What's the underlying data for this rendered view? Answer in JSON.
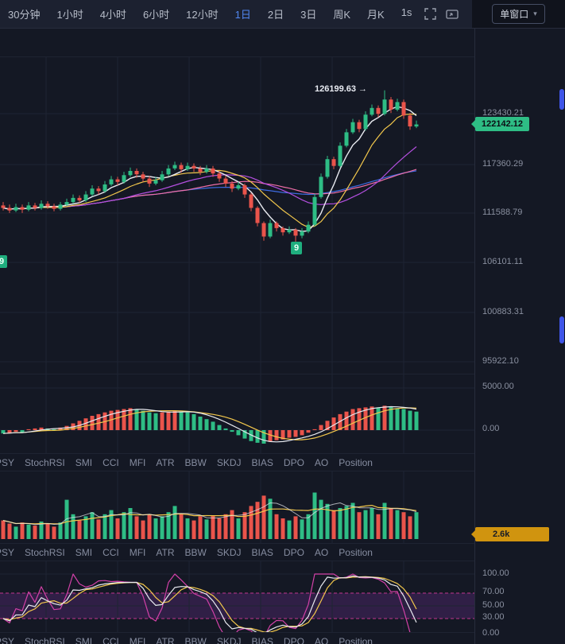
{
  "toolbar": {
    "items": [
      "30分钟",
      "1小时",
      "4小时",
      "6小时",
      "12小时",
      "1日",
      "2日",
      "3日",
      "周K",
      "月K",
      "1s"
    ],
    "active": "1日",
    "window_button": "单窗口"
  },
  "axis": {
    "main": [
      "123430.21",
      "117360.29",
      "111588.79",
      "106101.11",
      "100883.31",
      "95922.10"
    ],
    "pane1": [
      "5000.00",
      "0.00"
    ],
    "pane3": [
      "100.00",
      "70.00",
      "50.00",
      "30.00",
      "0.00"
    ],
    "last_price": "122142.12",
    "volume_badge": "2.6k"
  },
  "annotations": {
    "high_label": "126199.63 →",
    "td_marker_left": "9",
    "td_marker_bottom": "9"
  },
  "indicator_tabs": [
    "PSY",
    "StochRSI",
    "SMI",
    "CCI",
    "MFI",
    "ATR",
    "BBW",
    "SKDJ",
    "BIAS",
    "DPO",
    "AO",
    "Position"
  ],
  "colors": {
    "up": "#2ebd85",
    "down": "#ea544b",
    "grid": "#1e2433",
    "accent": "#5187f0",
    "price_badge_bg": "#2ebd85",
    "volume_badge_bg": "#d0940f",
    "band_fill": "rgba(150,60,190,0.22)",
    "band_line": "#c0368e",
    "ma_white": "#e8eaf0",
    "ma_yellow": "#f3c84c",
    "ma_purple": "#b44fe0",
    "ma_pink": "#ef6ea8",
    "ma_blue": "#3d6be0"
  },
  "chart_data": {
    "type": "candlestick",
    "note": "daily BTC-like candles [open,high,low,close]; ao = oscillator pane values; volume = lower histogram",
    "candles": [
      [
        112500,
        112900,
        111900,
        112200
      ],
      [
        112200,
        112600,
        111600,
        111900
      ],
      [
        111900,
        112700,
        111700,
        112300
      ],
      [
        112300,
        112600,
        111600,
        112000
      ],
      [
        112000,
        112900,
        111800,
        112500
      ],
      [
        112500,
        112800,
        111900,
        112200
      ],
      [
        112200,
        113100,
        112000,
        112700
      ],
      [
        112700,
        113000,
        112100,
        112400
      ],
      [
        112400,
        112700,
        111800,
        112100
      ],
      [
        112100,
        112900,
        111900,
        112600
      ],
      [
        112600,
        113300,
        112400,
        112900
      ],
      [
        112900,
        113800,
        112700,
        113400
      ],
      [
        113400,
        113700,
        112800,
        113100
      ],
      [
        113100,
        114200,
        112900,
        113800
      ],
      [
        113800,
        114900,
        113600,
        114500
      ],
      [
        114500,
        114800,
        113800,
        114200
      ],
      [
        114200,
        115400,
        114000,
        115000
      ],
      [
        115000,
        116000,
        114800,
        115600
      ],
      [
        115600,
        115900,
        114900,
        115300
      ],
      [
        115300,
        116500,
        115100,
        116100
      ],
      [
        116100,
        117000,
        115900,
        116600
      ],
      [
        116600,
        116900,
        115800,
        116200
      ],
      [
        116200,
        116500,
        115300,
        115700
      ],
      [
        115700,
        116000,
        114700,
        115100
      ],
      [
        115100,
        115900,
        114900,
        115500
      ],
      [
        115500,
        116600,
        115300,
        116200
      ],
      [
        116200,
        117300,
        116000,
        116900
      ],
      [
        116900,
        117700,
        116700,
        117300
      ],
      [
        117300,
        117600,
        116400,
        116800
      ],
      [
        116800,
        117600,
        116600,
        117200
      ],
      [
        117200,
        117500,
        116500,
        116900
      ],
      [
        116900,
        117200,
        116100,
        116500
      ],
      [
        116500,
        117300,
        116300,
        116900
      ],
      [
        116900,
        117200,
        115900,
        116300
      ],
      [
        116300,
        116600,
        115300,
        115700
      ],
      [
        115700,
        116000,
        114700,
        115100
      ],
      [
        115100,
        115400,
        114100,
        114500
      ],
      [
        114500,
        115300,
        114300,
        114900
      ],
      [
        114900,
        115100,
        113400,
        113800
      ],
      [
        113800,
        114000,
        111800,
        112200
      ],
      [
        112200,
        112400,
        110000,
        110400
      ],
      [
        110400,
        110600,
        108300,
        108800
      ],
      [
        108800,
        110800,
        108600,
        110400
      ],
      [
        110400,
        110600,
        109400,
        109800
      ],
      [
        109800,
        110000,
        108900,
        109300
      ],
      [
        109300,
        110000,
        109100,
        109600
      ],
      [
        109600,
        109800,
        107600,
        108900
      ],
      [
        108900,
        109800,
        108600,
        109400
      ],
      [
        109400,
        110600,
        109200,
        110200
      ],
      [
        110200,
        113900,
        110000,
        113500
      ],
      [
        113500,
        116300,
        113300,
        115900
      ],
      [
        115900,
        118400,
        115700,
        118000
      ],
      [
        118000,
        118300,
        116800,
        117200
      ],
      [
        117200,
        120000,
        117000,
        119600
      ],
      [
        119600,
        121600,
        119400,
        121200
      ],
      [
        121200,
        122800,
        121000,
        122400
      ],
      [
        122400,
        122700,
        121200,
        121600
      ],
      [
        121600,
        123700,
        121400,
        123300
      ],
      [
        123300,
        124500,
        123100,
        124100
      ],
      [
        124100,
        124400,
        123000,
        123400
      ],
      [
        123400,
        126200,
        123200,
        125100
      ],
      [
        125100,
        125400,
        123500,
        123900
      ],
      [
        123900,
        125200,
        123700,
        124800
      ],
      [
        124800,
        125100,
        122800,
        123200
      ],
      [
        123200,
        123500,
        121500,
        121900
      ],
      [
        121900,
        122600,
        121700,
        122142
      ]
    ],
    "ao": [
      -400,
      -300,
      -200,
      -300,
      100,
      200,
      300,
      200,
      100,
      300,
      500,
      800,
      1100,
      1400,
      1700,
      1900,
      2100,
      2300,
      2400,
      2500,
      2600,
      2500,
      2300,
      2100,
      2000,
      2100,
      2200,
      2300,
      2200,
      2100,
      1900,
      1600,
      1300,
      1000,
      600,
      200,
      -200,
      -600,
      -1000,
      -1300,
      -1500,
      -1600,
      -1400,
      -1200,
      -1100,
      -900,
      -800,
      -600,
      -300,
      100,
      600,
      1100,
      1500,
      1900,
      2200,
      2500,
      2600,
      2700,
      2800,
      2700,
      2900,
      2800,
      2600,
      2500,
      2300,
      2200
    ],
    "volume": [
      1800,
      1500,
      1200,
      1600,
      1400,
      1300,
      1700,
      1500,
      1200,
      1600,
      3800,
      2400,
      1800,
      2200,
      2600,
      1900,
      2400,
      2800,
      2000,
      2600,
      3000,
      2200,
      1800,
      2400,
      2000,
      2200,
      2600,
      3200,
      2400,
      2000,
      1800,
      2200,
      1900,
      2300,
      2000,
      2400,
      2800,
      2000,
      2600,
      3200,
      3600,
      4200,
      3900,
      2400,
      2000,
      1800,
      2200,
      1900,
      2400,
      4500,
      3800,
      3400,
      2800,
      3000,
      3200,
      3500,
      2600,
      2800,
      3000,
      2400,
      3500,
      3000,
      2800,
      2600,
      2200,
      2600
    ],
    "stoch": "derived from candles (K/D/J, 9-period)"
  }
}
